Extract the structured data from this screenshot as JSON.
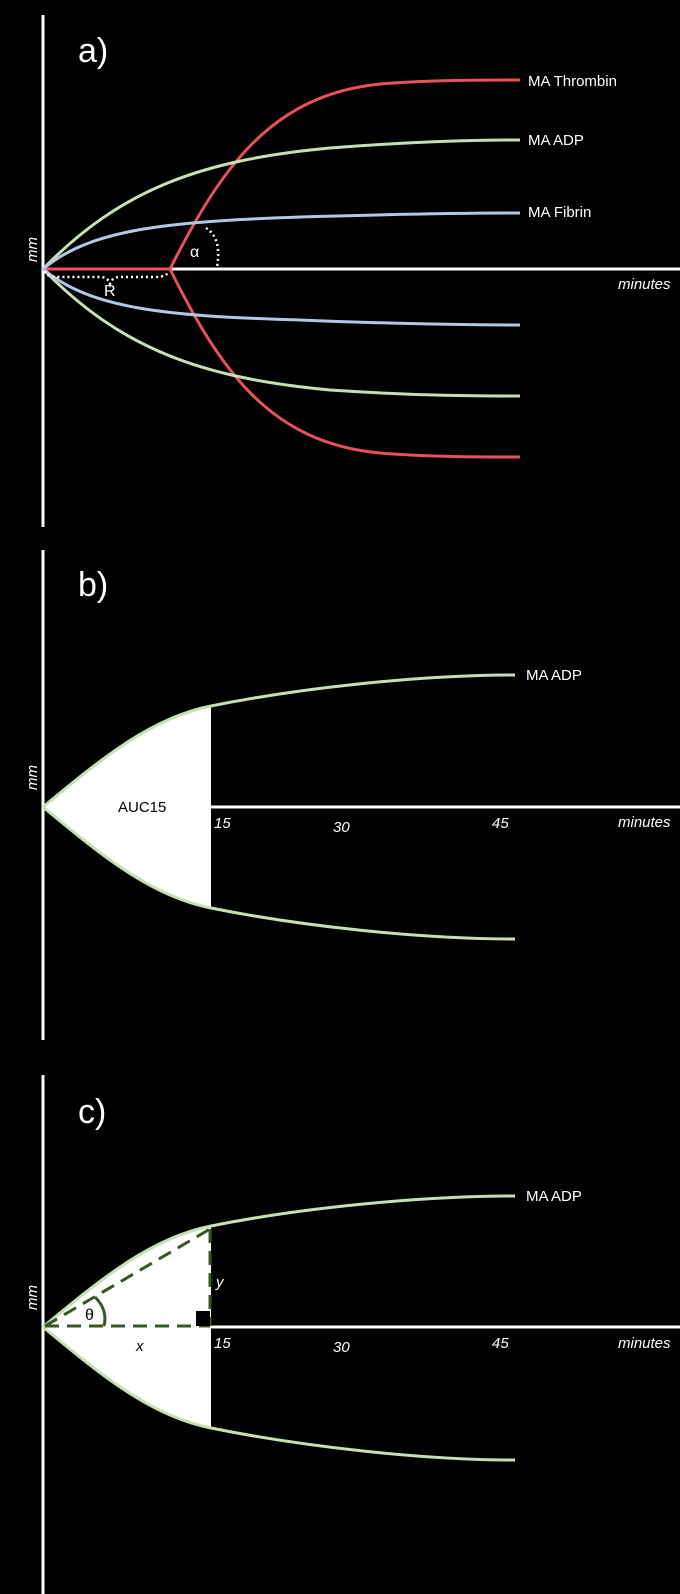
{
  "colors": {
    "background": "#000000",
    "axis": "#ffffff",
    "thrombin": "#e8505b",
    "adp": "#c6e0b4",
    "fibrin": "#b4c7e7",
    "guide_dark_green": "#385723",
    "fill": "#ffffff"
  },
  "panel_a": {
    "label": "a)",
    "y_axis_label": "mm",
    "x_axis_label": "minutes",
    "curves": [
      {
        "name": "MA Thrombin",
        "color": "#e8505b"
      },
      {
        "name": "MA ADP",
        "color": "#c6e0b4"
      },
      {
        "name": "MA Fibrin",
        "color": "#b4c7e7"
      }
    ],
    "r_label": "R",
    "alpha_label": "α"
  },
  "panel_b": {
    "label": "b)",
    "y_axis_label": "mm",
    "x_axis_label": "minutes",
    "curve_label": "MA ADP",
    "auc_label": "AUC15",
    "ticks": [
      "15",
      "30",
      "45"
    ]
  },
  "panel_c": {
    "label": "c)",
    "y_axis_label": "mm",
    "x_axis_label": "minutes",
    "curve_label": "MA ADP",
    "theta_label": "θ",
    "x_label": "x",
    "y_label": "y",
    "ticks": [
      "15",
      "30",
      "45"
    ]
  }
}
